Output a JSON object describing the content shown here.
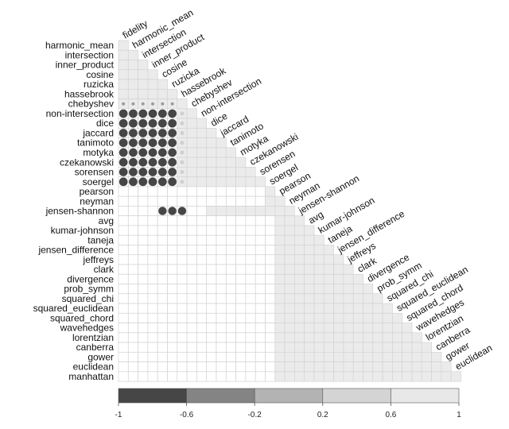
{
  "chart_data": {
    "type": "heatmap",
    "row_labels": [
      "harmonic_mean",
      "intersection",
      "inner_product",
      "cosine",
      "ruzicka",
      "hassebrook",
      "chebyshev",
      "non-intersection",
      "dice",
      "jaccard",
      "tanimoto",
      "motyka",
      "czekanowski",
      "sorensen",
      "soergel",
      "pearson",
      "neyman",
      "jensen-shannon",
      "avg",
      "kumar-johnson",
      "taneja",
      "jensen_difference",
      "jeffreys",
      "clark",
      "divergence",
      "prob_symm",
      "squared_chi",
      "squared_euclidean",
      "squared_chord",
      "wavehedges",
      "lorentzian",
      "canberra",
      "gower",
      "euclidean",
      "manhattan"
    ],
    "column_labels": [
      "fidelity",
      "harmonic_mean",
      "intersection",
      "inner_product",
      "cosine",
      "ruzicka",
      "hassebrook",
      "chebyshev",
      "non-intersection",
      "dice",
      "jaccard",
      "tanimoto",
      "motyka",
      "czekanowski",
      "sorensen",
      "soergel",
      "pearson",
      "neyman",
      "jensen-shannon",
      "avg",
      "kumar-johnson",
      "taneja",
      "jensen_difference",
      "jeffreys",
      "clark",
      "divergence",
      "prob_symm",
      "squared_chi",
      "squared_euclidean",
      "squared_chord",
      "wavehedges",
      "lorentzian",
      "canberra",
      "gower",
      "euclidean"
    ],
    "lower_triangle": true,
    "method": "circle",
    "blocks": [
      {
        "rows": [
          0,
          6
        ],
        "cols": [
          0,
          6
        ],
        "value": 0.97
      },
      {
        "rows": [
          6,
          6
        ],
        "cols": [
          0,
          5
        ],
        "value": 0.45
      },
      {
        "rows": [
          7,
          14
        ],
        "cols": [
          0,
          5
        ],
        "value": -0.99
      },
      {
        "rows": [
          7,
          14
        ],
        "cols": [
          6,
          6
        ],
        "value": 0.75
      },
      {
        "rows": [
          7,
          14
        ],
        "cols": [
          7,
          15
        ],
        "value": 0.97
      },
      {
        "rows": [
          15,
          16
        ],
        "cols": [
          15,
          16
        ],
        "value": 0.97
      },
      {
        "rows": [
          17,
          17
        ],
        "cols": [
          4,
          6
        ],
        "value": -0.95
      },
      {
        "rows": [
          17,
          17
        ],
        "cols": [
          9,
          16
        ],
        "value": 0.95
      },
      {
        "rows": [
          17,
          34
        ],
        "cols": [
          16,
          34
        ],
        "value": 0.97
      }
    ],
    "default_value": 0.0,
    "colorbar": {
      "ticks": [
        -1,
        -0.6,
        -0.2,
        0.2,
        0.6,
        1
      ],
      "tick_labels": [
        "-1",
        "-0.6",
        "-0.2",
        "0.2",
        "0.6",
        "1"
      ],
      "colors": [
        "#464646",
        "#848484",
        "#b3b3b3",
        "#d4d4d4",
        "#e8e8e8"
      ]
    },
    "title": "",
    "xlabel": "",
    "ylabel": ""
  }
}
